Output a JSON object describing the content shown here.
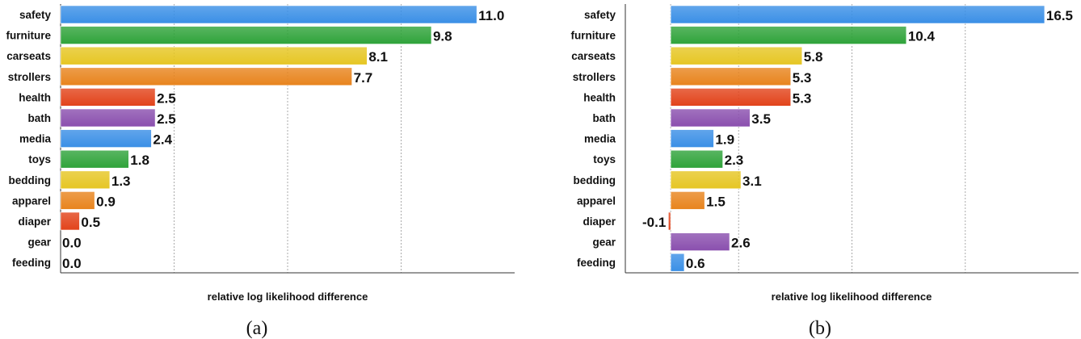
{
  "colors": [
    "#3a8fe6",
    "#2fa33a",
    "#e6c623",
    "#e8841d",
    "#e2431a",
    "#8a4fae"
  ],
  "chart_data": [
    {
      "type": "bar",
      "orientation": "horizontal",
      "caption": "(a)",
      "xlabel": "relative log likelihood difference",
      "categories": [
        "safety",
        "furniture",
        "carseats",
        "strollers",
        "health",
        "bath",
        "media",
        "toys",
        "bedding",
        "apparel",
        "diaper",
        "gear",
        "feeding"
      ],
      "values": [
        11.0,
        9.8,
        8.1,
        7.7,
        2.5,
        2.5,
        2.4,
        1.8,
        1.3,
        0.9,
        0.5,
        0.0,
        0.0
      ],
      "labels": [
        "11.0",
        "9.8",
        "8.1",
        "7.7",
        "2.5",
        "2.5",
        "2.4",
        "1.8",
        "1.3",
        "0.9",
        "0.5",
        "0.0",
        "0.0"
      ],
      "xlim": [
        0,
        12
      ],
      "gridlines": [
        3,
        6,
        9
      ],
      "grid": true
    },
    {
      "type": "bar",
      "orientation": "horizontal",
      "caption": "(b)",
      "xlabel": "relative log likelihood difference",
      "categories": [
        "safety",
        "furniture",
        "carseats",
        "strollers",
        "health",
        "bath",
        "media",
        "toys",
        "bedding",
        "apparel",
        "diaper",
        "gear",
        "feeding"
      ],
      "values": [
        16.5,
        10.4,
        5.8,
        5.3,
        5.3,
        3.5,
        1.9,
        2.3,
        3.1,
        1.5,
        -0.1,
        2.6,
        0.6
      ],
      "labels": [
        "16.5",
        "10.4",
        "5.8",
        "5.3",
        "5.3",
        "3.5",
        "1.9",
        "2.3",
        "3.1",
        "1.5",
        "-0.1",
        "2.6",
        "0.6"
      ],
      "xlim": [
        -2,
        18
      ],
      "gridlines": [
        0,
        3,
        8,
        13
      ],
      "grid": true
    }
  ]
}
